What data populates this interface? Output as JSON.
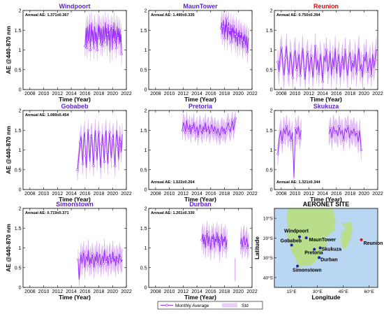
{
  "figure": {
    "legend": {
      "mean_label": "Monthly Average",
      "std_label": "Std"
    },
    "colors": {
      "series": "#9b30ff",
      "std_band": "#d9a6f2",
      "title_default": "#5b1fd6",
      "title_reunion": "#e01010"
    }
  },
  "chart_data": [
    {
      "type": "line",
      "title": "Windpoort",
      "title_color": "#5b1fd6",
      "xlabel": "Time (Year)",
      "ylabel": "AE @440-870 nm",
      "annotation": "Annual AE: 1.371±0.367",
      "annotation_pos": "top-left",
      "xlim": [
        2007,
        2022
      ],
      "ylim": [
        0,
        2
      ],
      "xticks": [
        "2008",
        "2010",
        "2012",
        "2014",
        "2016",
        "2018",
        "2020",
        "2022"
      ],
      "yticks": [
        "0",
        "0.5",
        "1",
        "1.5",
        "2"
      ],
      "x_range": [
        2016.0,
        2021.3
      ],
      "series": [
        {
          "name": "Monthly Average",
          "values": [
            1.1,
            1.3,
            1.55,
            1.05,
            1.6,
            1.45,
            1.2,
            1.5,
            1.65,
            1.0,
            1.35,
            1.7,
            1.25,
            1.5,
            1.4,
            1.05,
            1.6,
            1.55,
            1.2,
            1.45,
            1.35,
            1.0,
            1.5,
            1.65,
            1.3,
            1.6,
            1.45,
            1.15,
            1.55,
            1.4,
            1.1,
            1.6,
            1.5,
            1.2,
            1.45,
            1.7,
            1.3,
            1.55,
            1.1,
            1.4,
            1.65,
            1.25,
            1.5,
            0.95,
            1.35,
            1.6,
            1.45,
            1.0,
            1.55,
            1.3,
            1.7,
            1.2,
            1.5,
            1.4,
            1.05,
            1.6,
            1.45,
            1.3,
            1.55,
            1.15,
            1.5,
            1.2,
            1.4,
            0.9
          ]
        },
        {
          "name": "Std",
          "values": [
            0.3
          ]
        }
      ]
    },
    {
      "type": "line",
      "title": "MaunTower",
      "title_color": "#5b1fd6",
      "xlabel": "Time (Year)",
      "ylabel": "",
      "annotation": "Annual AE: 1.490±0.335",
      "annotation_pos": "top-left",
      "xlim": [
        2007,
        2022
      ],
      "ylim": [
        0,
        2
      ],
      "xticks": [
        "2008",
        "2010",
        "2012",
        "2014",
        "2016",
        "2018",
        "2020",
        "2022"
      ],
      "yticks": [
        "0",
        "0.5",
        "1",
        "1.5",
        "2"
      ],
      "x_range": [
        2017.5,
        2021.5
      ],
      "series": [
        {
          "name": "Monthly Average",
          "values": [
            1.55,
            1.7,
            1.4,
            1.6,
            1.75,
            1.5,
            1.3,
            1.65,
            1.45,
            1.8,
            1.55,
            1.25,
            1.6,
            1.7,
            1.4,
            1.5,
            1.35,
            1.65,
            1.2,
            1.55,
            1.45,
            1.6,
            1.3,
            1.5,
            1.4,
            1.2,
            1.55,
            1.35,
            1.1,
            1.45,
            1.3,
            1.5,
            1.15,
            1.4,
            1.3,
            1.45,
            1.25,
            1.05,
            1.35,
            1.2,
            1.4,
            1.3,
            1.1,
            1.25,
            1.35,
            0.95,
            1.2,
            1.3
          ]
        },
        {
          "name": "Std",
          "values": [
            0.3
          ]
        }
      ]
    },
    {
      "type": "line",
      "title": "Reunion",
      "title_color": "#e01010",
      "xlabel": "Time (Year)",
      "ylabel": "",
      "annotation": "Annual AE: 0.750±0.394",
      "annotation_pos": "top-left",
      "xlim": [
        2007,
        2022
      ],
      "ylim": [
        0,
        2
      ],
      "xticks": [
        "2008",
        "2010",
        "2012",
        "2014",
        "2016",
        "2018",
        "2020",
        "2022"
      ],
      "yticks": [
        "0",
        "0.5",
        "1",
        "1.5",
        "2"
      ],
      "x_range": [
        2007.5,
        2021.8
      ],
      "series": [
        {
          "name": "Monthly Average",
          "values": [
            0.7,
            0.45,
            0.9,
            1.05,
            0.6,
            0.35,
            0.8,
            1.1,
            0.55,
            0.4,
            0.95,
            0.7,
            0.3,
            0.85,
            1.0,
            0.5,
            0.65,
            0.9,
            0.35,
            0.75,
            1.05,
            0.55,
            0.25,
            0.8,
            0.95,
            0.45,
            0.7,
            0.85,
            0.3,
            0.6,
            1.1,
            0.5,
            0.75,
            0.4,
            0.9,
            0.65,
            0.2,
            0.85,
            0.7,
            1.0,
            0.45,
            0.6,
            0.95,
            0.35,
            0.8,
            0.55,
            1.05,
            0.4,
            0.7,
            0.9,
            0.3,
            0.65,
            0.85,
            0.5,
            1.0,
            0.6,
            0.35,
            0.8,
            0.95,
            0.45,
            0.7,
            0.55,
            0.9,
            0.4,
            0.75,
            1.05,
            0.5,
            0.65,
            0.3,
            0.85,
            0.7,
            0.95,
            0.45,
            0.6,
            0.8,
            0.35,
            0.9,
            0.55,
            0.75,
            1.0
          ]
        },
        {
          "name": "Std",
          "values": [
            0.35
          ]
        }
      ]
    },
    {
      "type": "line",
      "title": "Gobabeb",
      "title_color": "#5b1fd6",
      "xlabel": "Time (Year)",
      "ylabel": "AE @440-870 nm",
      "annotation": "Annual AE: 1.089±0.454",
      "annotation_pos": "top-left",
      "xlim": [
        2007,
        2022
      ],
      "ylim": [
        0,
        2
      ],
      "xticks": [
        "2008",
        "2010",
        "2012",
        "2014",
        "2016",
        "2018",
        "2020",
        "2022"
      ],
      "yticks": [
        "0",
        "0.5",
        "1",
        "1.5",
        "2"
      ],
      "x_range": [
        2014.9,
        2021.4
      ],
      "series": [
        {
          "name": "Monthly Average",
          "values": [
            0.5,
            0.7,
            0.95,
            1.2,
            1.35,
            1.0,
            0.65,
            1.3,
            1.45,
            0.85,
            0.55,
            1.2,
            1.5,
            1.05,
            0.7,
            1.35,
            1.4,
            0.9,
            0.6,
            1.25,
            1.5,
            1.0,
            0.75,
            1.3,
            1.45,
            0.85,
            0.55,
            1.15,
            1.4,
            1.05,
            0.7,
            1.35,
            1.5,
            0.95,
            0.65,
            1.2,
            1.45,
            1.0,
            0.8,
            1.3,
            1.4,
            0.9,
            0.6,
            1.25,
            1.5,
            1.1,
            0.75,
            1.35,
            1.2,
            0.95,
            1.4
          ]
        },
        {
          "name": "Std",
          "values": [
            0.3
          ]
        }
      ]
    },
    {
      "type": "line",
      "title": "Pretoria",
      "title_color": "#5b1fd6",
      "xlabel": "Time (Year)",
      "ylabel": "",
      "annotation": "Annual AE: 1.522±0.264",
      "annotation_pos": "bottom-left",
      "xlim": [
        2007,
        2022
      ],
      "ylim": [
        0,
        2
      ],
      "xticks": [
        "2008",
        "2010",
        "2012",
        "2014",
        "2016",
        "2018",
        "2020",
        "2022"
      ],
      "yticks": [
        "0",
        "0.5",
        "1",
        "1.5",
        "2"
      ],
      "x_range": [
        2011.9,
        2019.6
      ],
      "series": [
        {
          "name": "Monthly Average",
          "values": [
            1.5,
            1.7,
            1.6,
            1.45,
            1.75,
            1.55,
            1.5,
            1.65,
            1.4,
            1.6,
            1.55,
            1.7,
            1.45,
            1.5,
            1.6,
            1.35,
            1.55,
            1.65,
            1.5,
            1.4,
            1.6,
            1.5,
            1.7,
            1.45,
            1.55,
            1.6,
            1.4,
            1.5,
            1.65,
            1.55,
            1.45,
            1.6,
            1.5,
            1.4,
            1.55,
            1.45,
            1.35,
            1.5,
            1.6,
            1.45,
            1.55,
            1.4,
            1.5,
            1.6,
            1.7,
            1.55,
            1.45,
            1.6,
            1.75,
            1.5,
            1.65,
            1.8
          ]
        },
        {
          "name": "Std",
          "values": [
            0.25
          ]
        }
      ]
    },
    {
      "type": "line",
      "title": "Skukuza",
      "title_color": "#5b1fd6",
      "xlabel": "Time (Year)",
      "ylabel": "",
      "annotation": "Annual AE: 1.321±0.344",
      "annotation_pos": "bottom-left",
      "xlim": [
        2007,
        2022
      ],
      "ylim": [
        0,
        2
      ],
      "xticks": [
        "2008",
        "2010",
        "2012",
        "2014",
        "2016",
        "2018",
        "2020",
        "2022"
      ],
      "yticks": [
        "0",
        "0.5",
        "1",
        "1.5",
        "2"
      ],
      "x_range": [
        2007.5,
        2019.6
      ],
      "series": [
        {
          "name": "Monthly Average",
          "values": [
            0.9,
            1.3,
            1.5,
            1.2,
            1.55,
            1.4,
            1.6,
            1.35,
            1.5,
            1.25,
            1.45,
            0.3,
            1.55,
            1.4,
            1.6,
            1.3,
            1.5,
            null,
            null,
            null,
            null,
            null,
            null,
            null,
            null,
            null,
            null,
            null,
            null,
            null,
            null,
            null,
            null,
            null,
            null,
            1.4,
            1.55,
            1.3,
            1.6,
            1.45,
            1.5,
            1.35,
            1.6,
            1.4,
            1.5,
            1.25,
            1.55,
            1.45,
            1.6,
            1.3,
            1.5,
            1.4,
            1.55,
            1.35,
            1.45,
            1.2,
            1.5,
            1.0
          ]
        },
        {
          "name": "Std",
          "values": [
            0.3
          ]
        }
      ]
    },
    {
      "type": "line",
      "title": "Simonstown",
      "title_color": "#5b1fd6",
      "xlabel": "Time (Year)",
      "ylabel": "AE @440-870 nm",
      "annotation": "Annual AE: 0.719±0.371",
      "annotation_pos": "top-left",
      "xlim": [
        2007,
        2022
      ],
      "ylim": [
        0,
        2
      ],
      "xticks": [
        "2008",
        "2010",
        "2012",
        "2014",
        "2016",
        "2018",
        "2020",
        "2022"
      ],
      "yticks": [
        "0",
        "0.5",
        "1",
        "1.5",
        "2"
      ],
      "x_range": [
        2015.0,
        2021.4
      ],
      "series": [
        {
          "name": "Monthly Average",
          "values": [
            0.7,
            0.2,
            0.55,
            0.85,
            0.6,
            0.75,
            0.9,
            0.5,
            0.7,
            0.8,
            0.65,
            0.95,
            0.55,
            0.75,
            0.6,
            0.85,
            0.7,
            0.5,
            0.8,
            0.65,
            0.9,
            0.6,
            0.75,
            0.85,
            0.55,
            0.7,
            0.8,
            0.6,
            0.95,
            0.7,
            0.65,
            0.8,
            0.55,
            0.75,
            0.85,
            0.6,
            0.7,
            0.9,
            0.65,
            0.75,
            0.55,
            0.8,
            0.7,
            0.6,
            0.85,
            0.75,
            0.65,
            0.7
          ]
        },
        {
          "name": "Std",
          "values": [
            0.3
          ]
        }
      ]
    },
    {
      "type": "line",
      "title": "Durban",
      "title_color": "#5b1fd6",
      "xlabel": "Time (Year)",
      "ylabel": "",
      "annotation": "Annual AE: 1.201±0.330",
      "annotation_pos": "top-left",
      "xlim": [
        2007,
        2022
      ],
      "ylim": [
        0,
        2
      ],
      "xticks": [
        "2008",
        "2010",
        "2012",
        "2014",
        "2016",
        "2018",
        "2020",
        "2022"
      ],
      "yticks": [
        "0",
        "0.5",
        "1",
        "1.5",
        "2"
      ],
      "x_range": [
        2014.7,
        2021.5
      ],
      "series": [
        {
          "name": "Monthly Average",
          "values": [
            1.2,
            1.35,
            1.1,
            1.3,
            1.0,
            1.25,
            1.4,
            1.05,
            1.3,
            1.15,
            0.95,
            1.3,
            1.2,
            1.35,
            1.0,
            1.25,
            1.15,
            1.4,
            1.1,
            1.3,
            0.9,
            1.2,
            1.35,
            1.05,
            1.25,
            1.15,
            1.3,
            1.0,
            1.2,
            null,
            null,
            null,
            null,
            null,
            null,
            null,
            null,
            0.45,
            null,
            null,
            null,
            null,
            null,
            1.1,
            1.25,
            1.0,
            1.2,
            1.3,
            1.05,
            1.15,
            1.25,
            1.0,
            1.1
          ]
        },
        {
          "name": "Std",
          "values": [
            0.3
          ]
        }
      ]
    }
  ],
  "map": {
    "title": "AERONET SITE",
    "xlabel": "Longitude",
    "ylabel": "Latitude",
    "xticks": [
      "15°E",
      "30°E",
      "45°E",
      "60°E"
    ],
    "yticks": [
      "10°S",
      "20°S",
      "30°S",
      "40°S"
    ],
    "sites": [
      {
        "name": "Windpoort",
        "lon": 19.6,
        "lat": -19.4,
        "color": "#1a1ac8"
      },
      {
        "name": "MaunTower",
        "lon": 23.5,
        "lat": -19.9,
        "color": "#1a1ac8"
      },
      {
        "name": "Gobabeb",
        "lon": 15.0,
        "lat": -23.6,
        "color": "#1a1ac8"
      },
      {
        "name": "Reunion",
        "lon": 55.5,
        "lat": -20.9,
        "color": "#e01010"
      },
      {
        "name": "Pretoria",
        "lon": 28.2,
        "lat": -25.7,
        "color": "#1a1ac8"
      },
      {
        "name": "Skukuza",
        "lon": 31.6,
        "lat": -25.0,
        "color": "#1a1ac8"
      },
      {
        "name": "Durban",
        "lon": 31.0,
        "lat": -29.9,
        "color": "#1a1ac8"
      },
      {
        "name": "Simonstown",
        "lon": 18.4,
        "lat": -34.2,
        "color": "#1a1ac8"
      }
    ]
  }
}
